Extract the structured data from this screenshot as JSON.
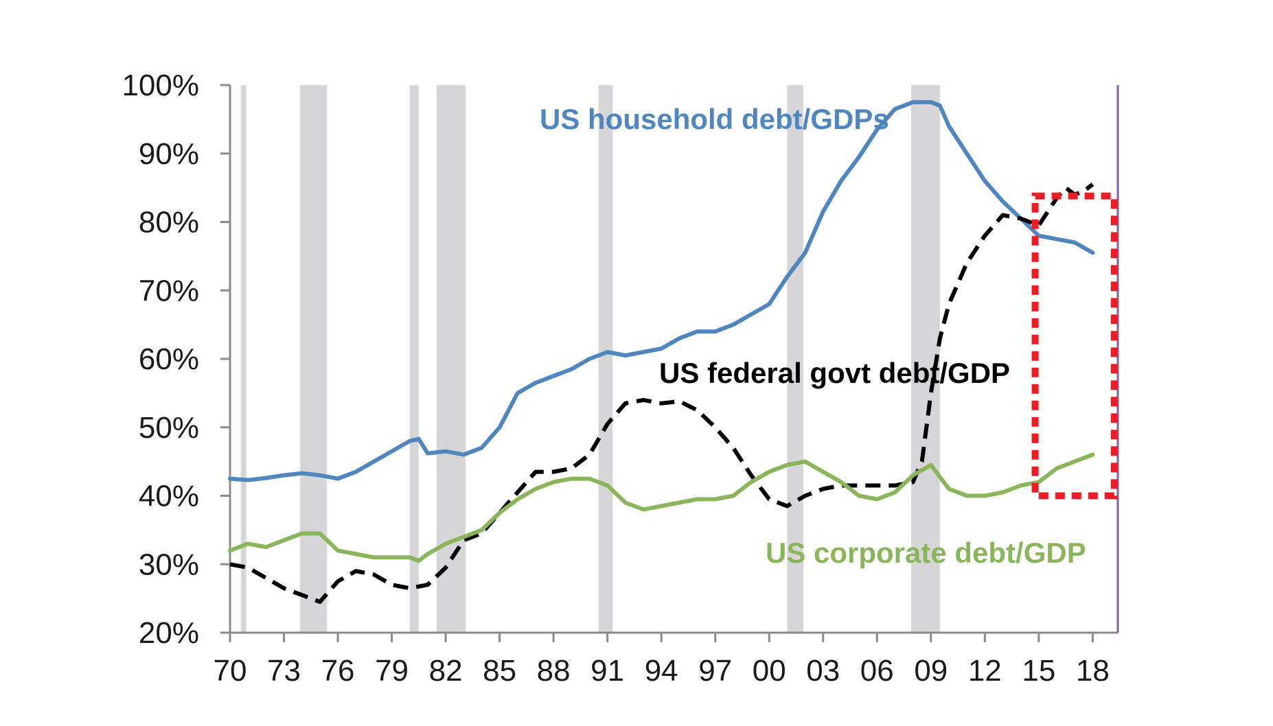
{
  "chart_data": {
    "type": "line",
    "title": "",
    "xlabel": "",
    "ylabel": "",
    "xlim": [
      1970,
      2019.4
    ],
    "ylim": [
      20,
      100
    ],
    "grid": false,
    "x_ticks": [
      1970,
      1973,
      1976,
      1979,
      1982,
      1985,
      1988,
      1991,
      1994,
      1997,
      2000,
      2003,
      2006,
      2009,
      2012,
      2015,
      2018
    ],
    "x_tick_labels": [
      "70",
      "73",
      "76",
      "79",
      "82",
      "85",
      "88",
      "91",
      "94",
      "97",
      "00",
      "03",
      "06",
      "09",
      "12",
      "15",
      "18"
    ],
    "y_ticks": [
      20,
      30,
      40,
      50,
      60,
      70,
      80,
      90,
      100
    ],
    "y_tick_labels": [
      "20%",
      "30%",
      "40%",
      "50%",
      "60%",
      "70%",
      "80%",
      "90%",
      "100%"
    ],
    "recessions": [
      [
        1970.6,
        1970.9
      ],
      [
        1973.9,
        1975.4
      ],
      [
        1980.0,
        1980.5
      ],
      [
        1981.5,
        1983.1
      ],
      [
        1990.5,
        1991.3
      ],
      [
        2001.0,
        2001.9
      ],
      [
        2007.9,
        2009.5
      ]
    ],
    "highlight_box": {
      "x": [
        2014.8,
        2019.2
      ],
      "y": [
        40.0,
        83.8
      ]
    },
    "series": [
      {
        "name": "US household debt/GDPs",
        "color": "#4f86c0",
        "style": "solid",
        "x": [
          1970,
          1971,
          1972,
          1973,
          1974,
          1975,
          1976,
          1977,
          1978,
          1979,
          1980,
          1980.5,
          1981,
          1982,
          1983,
          1984,
          1985,
          1986,
          1987,
          1988,
          1989,
          1990,
          1991,
          1992,
          1993,
          1994,
          1995,
          1996,
          1997,
          1998,
          1999,
          2000,
          2001,
          2002,
          2003,
          2004,
          2005,
          2006,
          2007,
          2008,
          2009,
          2009.5,
          2010,
          2011,
          2012,
          2013,
          2014,
          2015,
          2016,
          2017,
          2018
        ],
        "y": [
          42.5,
          42.3,
          42.6,
          43.0,
          43.3,
          43.0,
          42.5,
          43.5,
          45.0,
          46.5,
          48.0,
          48.3,
          46.2,
          46.5,
          46.0,
          47.0,
          50.0,
          55.0,
          56.5,
          57.5,
          58.5,
          60.0,
          61.0,
          60.5,
          61.0,
          61.5,
          63.0,
          64.0,
          64.0,
          65.0,
          66.5,
          68.0,
          72.0,
          75.5,
          81.5,
          86.0,
          89.5,
          93.5,
          96.5,
          97.5,
          97.5,
          97.0,
          94.0,
          90.0,
          86.0,
          83.0,
          80.5,
          78.0,
          77.5,
          77.0,
          75.5
        ]
      },
      {
        "name": "US federal govt debt/GDP",
        "color": "#000000",
        "style": "dashed",
        "x": [
          1970,
          1971,
          1972,
          1973,
          1974,
          1975,
          1976,
          1977,
          1978,
          1979,
          1980,
          1981,
          1982,
          1983,
          1984,
          1985,
          1986,
          1987,
          1988,
          1989,
          1990,
          1991,
          1992,
          1993,
          1994,
          1995,
          1996,
          1997,
          1998,
          1999,
          2000,
          2000.5,
          2001,
          2002,
          2003,
          2004,
          2005,
          2006,
          2007,
          2008,
          2008.5,
          2009,
          2009.5,
          2010,
          2011,
          2012,
          2013,
          2014,
          2015,
          2016,
          2016.5,
          2017,
          2017.5,
          2018
        ],
        "y": [
          30.0,
          29.5,
          28.0,
          26.5,
          25.5,
          24.5,
          27.5,
          29.0,
          28.5,
          27.0,
          26.5,
          27.0,
          29.5,
          33.5,
          34.5,
          37.5,
          40.5,
          43.5,
          43.5,
          44.0,
          46.0,
          50.5,
          53.5,
          54.0,
          53.5,
          53.8,
          52.5,
          50.0,
          47.0,
          43.0,
          39.5,
          39.0,
          38.5,
          40.0,
          41.0,
          41.5,
          41.5,
          41.5,
          41.5,
          42.0,
          45.0,
          55.0,
          63.0,
          68.0,
          74.0,
          78.0,
          81.0,
          80.5,
          79.5,
          83.5,
          85.0,
          84.0,
          84.5,
          85.5
        ]
      },
      {
        "name": "US corporate debt/GDP",
        "color": "#8ab55a",
        "style": "solid",
        "x": [
          1970,
          1971,
          1972,
          1973,
          1974,
          1975,
          1976,
          1977,
          1978,
          1979,
          1980,
          1980.5,
          1981,
          1982,
          1983,
          1984,
          1985,
          1986,
          1987,
          1988,
          1989,
          1990,
          1991,
          1992,
          1993,
          1994,
          1995,
          1996,
          1997,
          1998,
          1999,
          2000,
          2001,
          2002,
          2003,
          2004,
          2005,
          2006,
          2007,
          2008,
          2009,
          2010,
          2011,
          2012,
          2013,
          2014,
          2015,
          2016,
          2017,
          2018
        ],
        "y": [
          32.0,
          33.0,
          32.5,
          33.5,
          34.5,
          34.5,
          32.0,
          31.5,
          31.0,
          31.0,
          31.0,
          30.5,
          31.5,
          33.0,
          34.0,
          35.0,
          37.5,
          39.5,
          41.0,
          42.0,
          42.5,
          42.5,
          41.5,
          39.0,
          38.0,
          38.5,
          39.0,
          39.5,
          39.5,
          40.0,
          42.0,
          43.5,
          44.5,
          45.0,
          43.5,
          42.0,
          40.0,
          39.5,
          40.5,
          43.0,
          44.5,
          41.0,
          40.0,
          40.0,
          40.5,
          41.5,
          42.0,
          44.0,
          45.0,
          46.0
        ]
      }
    ],
    "labels": {
      "household": "US household debt/GDPs",
      "federal": "US federal govt debt/GDP",
      "corporate": "US corporate debt/GDP"
    }
  }
}
